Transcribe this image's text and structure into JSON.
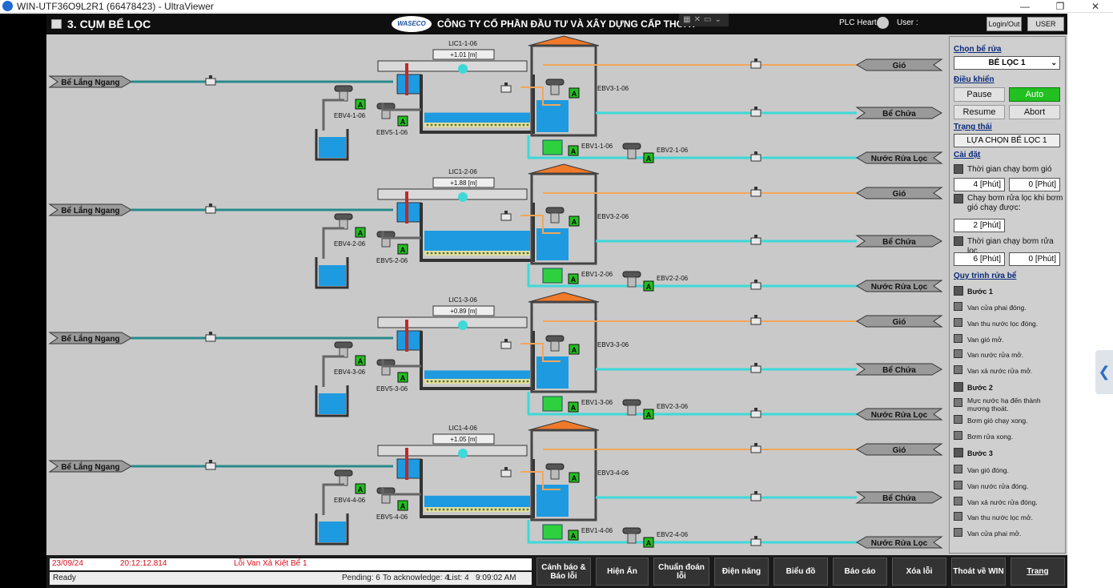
{
  "window": {
    "title": "WIN-UTF36O9L2R1 (66478423) - UltraViewer",
    "controls": [
      "—",
      "❐",
      "✕"
    ]
  },
  "header": {
    "screen_title": "3. CỤM BỂ LỌC",
    "logo_text": "WASECO",
    "company": "CÔNG TY CỔ PHẦN ĐẦU TƯ VÀ XÂY DỰNG CẤP THOÁT",
    "plc_heart": "PLC Heart",
    "user_label": "User :",
    "login_label": "Login/Out",
    "user_button": "USER"
  },
  "filters": [
    {
      "lic": "LIC1-1-06",
      "level": "+1.01 [m]",
      "ebv4": "EBV4-1-06",
      "ebv5": "EBV5-1-06",
      "ebv3": "EBV3-1-06",
      "ebv1": "EBV1-1-06",
      "ebv2": "EBV2-1-06",
      "water": 0.4
    },
    {
      "lic": "LIC1-2-06",
      "level": "+1.88 [m]",
      "ebv4": "EBV4-2-06",
      "ebv5": "EBV5-2-06",
      "ebv3": "EBV3-2-06",
      "ebv1": "EBV1-2-06",
      "ebv2": "EBV2-2-06",
      "water": 0.75
    },
    {
      "lic": "LIC1-3-06",
      "level": "+0.89 [m]",
      "ebv4": "EBV4-3-06",
      "ebv5": "EBV5-3-06",
      "ebv3": "EBV3-3-06",
      "ebv1": "EBV1-3-06",
      "ebv2": "EBV2-3-06",
      "water": 0.35
    },
    {
      "lic": "LIC1-4-06",
      "level": "+1.05 [m]",
      "ebv4": "EBV4-4-06",
      "ebv5": "EBV5-4-06",
      "ebv3": "EBV3-4-06",
      "ebv1": "EBV1-4-06",
      "ebv2": "EBV2-4-06",
      "water": 0.45
    }
  ],
  "labels": {
    "inlet": "Bể Lắng Ngang",
    "air": "Gió",
    "clear_tank": "Bể Chứa",
    "wash_water": "Nước Rửa Lọc",
    "auto_badge": "A"
  },
  "panel": {
    "choose_title": "Chọn bể rửa",
    "choose_value": "BỂ LỌC 1",
    "control_title": "Điều khiển",
    "btn_pause": "Pause",
    "btn_auto": "Auto",
    "btn_resume": "Resume",
    "btn_abort": "Abort",
    "state_title": "Trạng thái",
    "state_value": "LỰA CHỌN BỂ LỌC 1",
    "settings_title": "Cài đặt",
    "set1_label": "Thời gian chạy bơm gió",
    "set1_a": "4 [Phút]",
    "set1_b": "0 [Phút]",
    "set2_label": "Chạy bơm rửa lọc khi bơm gió chạy được:",
    "set2_a": "2 [Phút]",
    "set3_label": "Thời gian chạy bơm rửa lọc",
    "set3_a": "6 [Phút]",
    "set3_b": "0 [Phút]",
    "process_title": "Quy trình rửa bể",
    "step1": "Bước 1",
    "s1": [
      "Van cửa phai đóng.",
      "Van thu nước lọc đóng.",
      "Van gió mở.",
      "Van nước rửa mở.",
      "Van xả nước rửa mở."
    ],
    "step2": "Bước 2",
    "s2": [
      "Mực nước hạ đến thành mương thoát.",
      "Bơm gió chạy xong.",
      "Bơm rửa xong."
    ],
    "step3": "Bước 3",
    "s3": [
      "Van gió đóng.",
      "Van nước rửa đóng.",
      "Van xả nước rửa đóng.",
      "Van thu nước lọc mở.",
      "Van cửa phai mở."
    ]
  },
  "alarm": {
    "date": "23/09/24",
    "time": "20:12:12.814",
    "message": "Lỗi Van Xả Kiệt Bể 1"
  },
  "statusbar": {
    "ready": "Ready",
    "pending": "Pending: 6",
    "ack": "To acknowledge: 4",
    "list": "List: 4",
    "clock": "9:09:02 AM"
  },
  "nav": [
    "Cảnh báo & Báo lỗi",
    "Hiện Ẩn",
    "Chuẩn đoán lỗi",
    "Điện năng",
    "Biểu đồ",
    "Báo cáo",
    "Xóa lỗi",
    "Thoát về WIN",
    "Trang"
  ],
  "colors": {
    "pipe_teal": "#2a8a8a",
    "pipe_cyan": "#3fd8d8",
    "pipe_orange": "#f2a65a",
    "water": "#1e9be0",
    "roof": "#f07a2a",
    "valve_green": "#2ed040",
    "auto_green": "#22c020"
  }
}
